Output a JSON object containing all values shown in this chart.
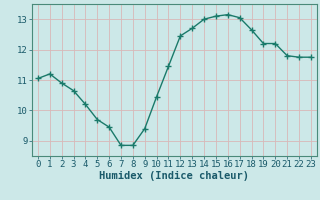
{
  "x": [
    0,
    1,
    2,
    3,
    4,
    5,
    6,
    7,
    8,
    9,
    10,
    11,
    12,
    13,
    14,
    15,
    16,
    17,
    18,
    19,
    20,
    21,
    22,
    23
  ],
  "y": [
    11.05,
    11.2,
    10.9,
    10.65,
    10.2,
    9.7,
    9.45,
    8.85,
    8.85,
    9.4,
    10.45,
    11.45,
    12.45,
    12.7,
    13.0,
    13.1,
    13.15,
    13.05,
    12.65,
    12.2,
    12.2,
    11.8,
    11.75,
    11.75
  ],
  "line_color": "#1a7a6a",
  "marker": "+",
  "marker_size": 4,
  "bg_color": "#cce8e8",
  "grid_color": "#b8d4d4",
  "grid_color_minor": "#d4e8e8",
  "axis_color": "#4a8a7a",
  "tick_color": "#1a5a6a",
  "xlabel": "Humidex (Indice chaleur)",
  "ylim": [
    8.5,
    13.5
  ],
  "xlim": [
    -0.5,
    23.5
  ],
  "yticks": [
    9,
    10,
    11,
    12,
    13
  ],
  "xticks": [
    0,
    1,
    2,
    3,
    4,
    5,
    6,
    7,
    8,
    9,
    10,
    11,
    12,
    13,
    14,
    15,
    16,
    17,
    18,
    19,
    20,
    21,
    22,
    23
  ],
  "font_color": "#1a5a6a",
  "fontsize_ticks": 6.5,
  "fontsize_label": 7.5
}
